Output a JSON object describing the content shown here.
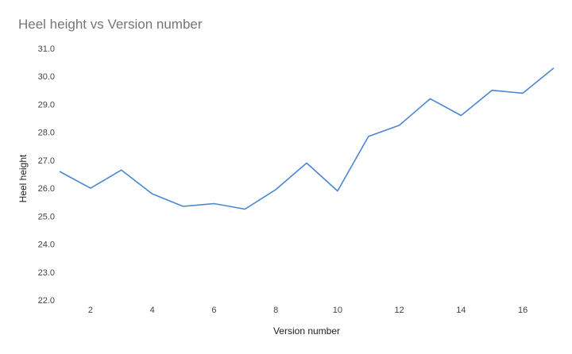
{
  "chart_data": {
    "type": "line",
    "title": "Heel height vs Version number",
    "xlabel": "Version number",
    "ylabel": "Heel height",
    "xlim": [
      1,
      17
    ],
    "ylim": [
      22.0,
      31.0
    ],
    "xticks": [
      2,
      4,
      6,
      8,
      10,
      12,
      14,
      16
    ],
    "yticks": [
      "22.0",
      "23.0",
      "24.0",
      "25.0",
      "26.0",
      "27.0",
      "28.0",
      "29.0",
      "30.0",
      "31.0"
    ],
    "grid": false,
    "legend": "none",
    "series": [
      {
        "color": "#4a86d4",
        "x": [
          1,
          2,
          3,
          4,
          5,
          6,
          7,
          8,
          9,
          10,
          11,
          12,
          13,
          14,
          15,
          16,
          17
        ],
        "y": [
          26.6,
          26.0,
          26.65,
          25.8,
          25.35,
          25.45,
          25.25,
          25.95,
          26.9,
          25.9,
          27.85,
          28.25,
          29.2,
          28.6,
          29.5,
          29.4,
          30.3
        ]
      }
    ]
  }
}
